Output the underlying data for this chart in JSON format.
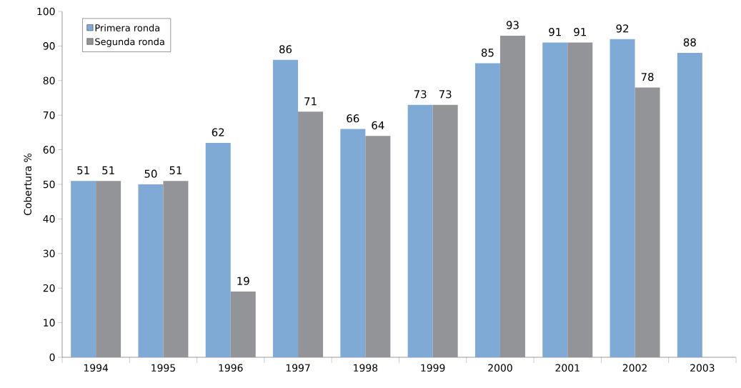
{
  "chart_data": {
    "type": "bar",
    "ylabel": "Cobertura %",
    "categories": [
      "1994",
      "1995",
      "1996",
      "1997",
      "1998",
      "1999",
      "2000",
      "2001",
      "2002",
      "2003"
    ],
    "series": [
      {
        "name": "Primera ronda",
        "color": "#7faad6",
        "values": [
          51,
          50,
          62,
          86,
          66,
          73,
          85,
          91,
          92,
          88
        ]
      },
      {
        "name": "Segunda ronda",
        "color": "#939498",
        "values": [
          51,
          51,
          19,
          71,
          64,
          73,
          93,
          91,
          78,
          null
        ]
      }
    ],
    "ylim": [
      0,
      100
    ],
    "yticks": [
      0,
      10,
      20,
      30,
      40,
      50,
      60,
      70,
      80,
      90,
      100
    ],
    "data_labels": true,
    "legend": "top left",
    "grid": false
  }
}
